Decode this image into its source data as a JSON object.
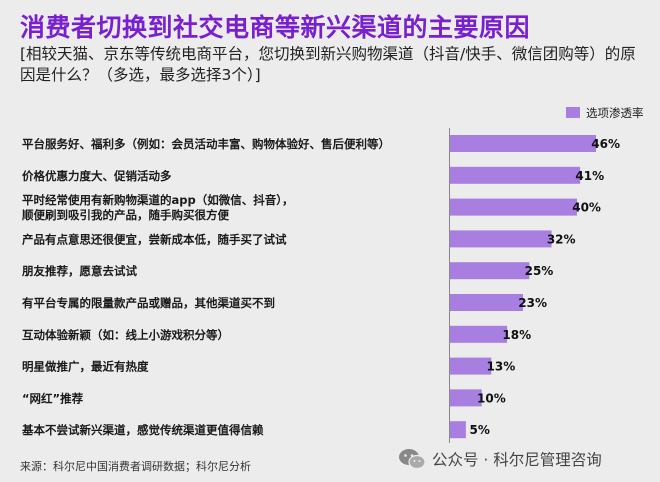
{
  "header": {
    "title": "消费者切换到社交电商等新兴渠道的主要原因",
    "subtitle": "[相较天猫、京东等传统电商平台，您切换到新兴购物渠道（抖音/快手、微信团购等）的原因是什么？（多选，最多选择3个）]"
  },
  "chart_data": {
    "type": "bar",
    "orientation": "horizontal",
    "categories": [
      [
        "平台服务好、福利多（例如：会员活动丰富、购物体验好、售后便利等）"
      ],
      [
        "价格优惠力度大、促销活动多"
      ],
      [
        "平时经常使用有新购物渠道的app（如微信、抖音），",
        "顺便刷到吸引我的产品，随手购买很方便"
      ],
      [
        "产品有点意思还很便宜，尝新成本低，随手买了试试"
      ],
      [
        "朋友推荐，愿意去试试"
      ],
      [
        "有平台专属的限量款产品或赠品，其他渠道买不到"
      ],
      [
        "互动体验新颖（如：线上小游戏积分等）"
      ],
      [
        "明星做推广，最近有热度"
      ],
      [
        "“网红”推荐"
      ],
      [
        "基本不尝试新兴渠道，感觉传统渠道更值得信赖"
      ]
    ],
    "series": [
      {
        "name": "选项渗透率",
        "values": [
          46,
          41,
          40,
          32,
          25,
          23,
          18,
          13,
          10,
          5
        ]
      }
    ],
    "data_labels": [
      "46%",
      "41%",
      "40%",
      "32%",
      "25%",
      "23%",
      "18%",
      "13%",
      "10%",
      "5%"
    ],
    "xlim": [
      0,
      46
    ],
    "legend_position": "top-right",
    "grid": false,
    "bar_color": "#a87fe0"
  },
  "footer": {
    "source": "来源：科尔尼中国消费者调研数据；科尔尼分析",
    "watermark": "公众号 · 科尔尼管理咨询"
  }
}
